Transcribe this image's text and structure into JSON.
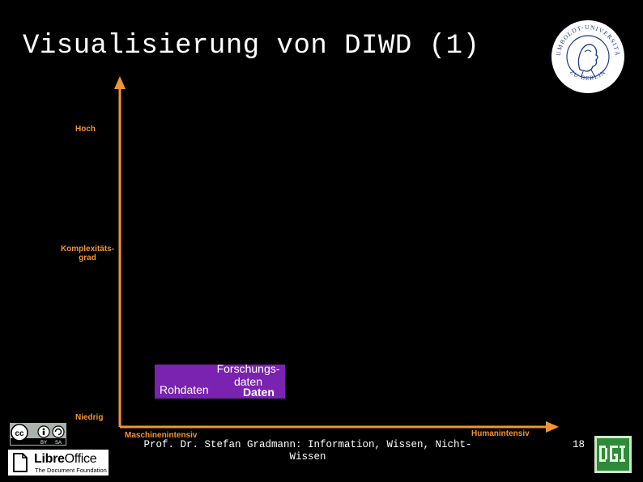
{
  "slide": {
    "title": "Visualisierung von DIWD (1)",
    "footer": "Prof. Dr. Stefan Gradmann: Information, Wissen, Nicht-Wissen",
    "page_number": "18"
  },
  "diagram": {
    "y_axis": {
      "top_label": "Hoch",
      "middle_label": "Komplexitäts-grad",
      "bottom_label": "Niedrig"
    },
    "x_axis": {
      "left_label": "Maschinenintensiv",
      "right_label": "Humanintensiv"
    },
    "box": {
      "forschungsdaten": "Forschungs-daten",
      "rohdaten": "Rohdaten",
      "daten": "Daten"
    },
    "colors": {
      "axis": "#f39434",
      "box": "#7a23b0",
      "background": "#000000"
    }
  },
  "logos": {
    "university_seal": "HUMBOLDT-UNIVERSITÄT ZU BERLIN",
    "cc_badge": "BY SA",
    "libreoffice_name": "Libre",
    "libreoffice_office": "Office",
    "libreoffice_sub": "The Document Foundation",
    "dgi": "DGI"
  }
}
